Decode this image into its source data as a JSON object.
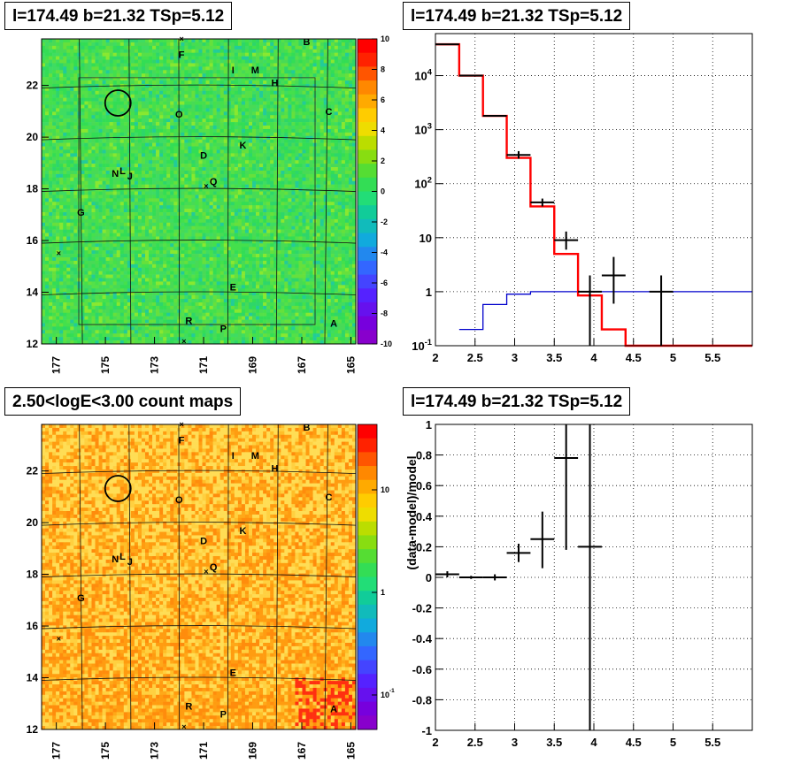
{
  "panels": {
    "tl_title": "l=174.49 b=21.32 TSp=5.12",
    "tr_title": "l=174.49 b=21.32 TSp=5.12",
    "bl_title": "2.50<logE<3.00 count maps",
    "br_title": "l=174.49 b=21.32 TSp=5.12"
  },
  "map": {
    "x_tick_labels": [
      "177",
      "175",
      "173",
      "171",
      "169",
      "167",
      "165"
    ],
    "y_tick_labels": [
      "12",
      "14",
      "16",
      "18",
      "20",
      "22"
    ],
    "source_labels": [
      {
        "t": "A",
        "l": 165.7,
        "b": 12.8
      },
      {
        "t": "B",
        "l": 166.8,
        "b": 23.7
      },
      {
        "t": "C",
        "l": 165.9,
        "b": 21.0
      },
      {
        "t": "D",
        "l": 171.0,
        "b": 19.3
      },
      {
        "t": "E",
        "l": 169.8,
        "b": 14.2
      },
      {
        "t": "F",
        "l": 171.9,
        "b": 23.2
      },
      {
        "t": "G",
        "l": 176.0,
        "b": 17.1
      },
      {
        "t": "H",
        "l": 168.1,
        "b": 22.1
      },
      {
        "t": "I",
        "l": 169.8,
        "b": 22.6
      },
      {
        "t": "J",
        "l": 174.0,
        "b": 18.5
      },
      {
        "t": "K",
        "l": 169.4,
        "b": 19.7
      },
      {
        "t": "L",
        "l": 174.3,
        "b": 18.7
      },
      {
        "t": "M",
        "l": 168.9,
        "b": 22.6
      },
      {
        "t": "N",
        "l": 174.6,
        "b": 18.6
      },
      {
        "t": "O",
        "l": 172.0,
        "b": 20.9
      },
      {
        "t": "P",
        "l": 170.2,
        "b": 12.6
      },
      {
        "t": "Q",
        "l": 170.6,
        "b": 18.3
      },
      {
        "t": "R",
        "l": 171.6,
        "b": 12.9
      }
    ],
    "target_circle": {
      "l": 174.49,
      "b": 21.32
    }
  },
  "colorbar_top": {
    "labels": [
      "10",
      "8",
      "6",
      "4",
      "2",
      "0",
      "-2",
      "-4",
      "-6",
      "-8",
      "-10"
    ]
  },
  "colorbar_bottom": {
    "labels": [
      "10",
      "1",
      "10^-1"
    ]
  },
  "colors": {
    "model_red": "#ff0000",
    "extra_blue": "#0000cc",
    "data_black": "#000000"
  },
  "chart_data": [
    {
      "type": "line",
      "panel": "spectrum",
      "log_y": true,
      "xlim": [
        2,
        6
      ],
      "ylim": [
        0.1,
        60000
      ],
      "x_ticks": [
        "2",
        "2.5",
        "3",
        "3.5",
        "4",
        "4.5",
        "5",
        "5.5"
      ],
      "y_ticks": [
        "10^-1",
        "1",
        "10",
        "10^2",
        "10^3",
        "10^4"
      ],
      "series": [
        {
          "role": "model",
          "edges": [
            2.0,
            2.3,
            2.6,
            2.9,
            3.2,
            3.5,
            3.8,
            4.1,
            4.4,
            4.7,
            5.0,
            5.3,
            5.6,
            6.0
          ],
          "values": [
            38000,
            10000,
            1800,
            300,
            38,
            5,
            0.85,
            0.2,
            0.1,
            0.1,
            0.1,
            0.1,
            0.1
          ]
        },
        {
          "role": "component",
          "edges": [
            2.3,
            2.6,
            2.9,
            3.2,
            3.5,
            3.8,
            4.1,
            4.4,
            4.7,
            5.0,
            5.3,
            5.6,
            6.0
          ],
          "values": [
            0.2,
            0.58,
            0.9,
            1,
            1,
            1,
            1,
            1,
            1,
            1,
            1,
            1
          ]
        },
        {
          "role": "data",
          "points": [
            {
              "x": 2.15,
              "xerr": 0.15,
              "y": 38000
            },
            {
              "x": 2.45,
              "xerr": 0.15,
              "y": 10000
            },
            {
              "x": 2.75,
              "xerr": 0.15,
              "y": 1800
            },
            {
              "x": 3.05,
              "xerr": 0.15,
              "y": 340,
              "ylo": 290,
              "yhi": 400
            },
            {
              "x": 3.35,
              "xerr": 0.15,
              "y": 45,
              "ylo": 38,
              "yhi": 53
            },
            {
              "x": 3.65,
              "xerr": 0.15,
              "y": 9,
              "ylo": 6,
              "yhi": 13
            },
            {
              "x": 3.95,
              "xerr": 0.15,
              "y": 1,
              "ylo": 0.1,
              "yhi": 2
            },
            {
              "x": 4.25,
              "xerr": 0.15,
              "y": 2,
              "ylo": 0.6,
              "yhi": 4.4
            },
            {
              "x": 4.85,
              "xerr": 0.15,
              "y": 1,
              "ylo": 0.1,
              "yhi": 2
            }
          ]
        }
      ]
    },
    {
      "type": "scatter",
      "panel": "residuals",
      "ylabel": "(data-model)/model",
      "xlim": [
        2,
        6
      ],
      "ylim": [
        -1,
        1
      ],
      "x_ticks": [
        "2",
        "2.5",
        "3",
        "3.5",
        "4",
        "4.5",
        "5",
        "5.5"
      ],
      "y_ticks": [
        "-1",
        "-0.8",
        "-0.6",
        "-0.4",
        "-0.2",
        "0",
        "0.2",
        "0.4",
        "0.6",
        "0.8",
        "1"
      ],
      "points": [
        {
          "x": 2.15,
          "xerr": 0.15,
          "y": 0.02,
          "ylo": 0.0,
          "yhi": 0.04
        },
        {
          "x": 2.45,
          "xerr": 0.15,
          "y": 0.0,
          "ylo": -0.01,
          "yhi": 0.01
        },
        {
          "x": 2.75,
          "xerr": 0.15,
          "y": 0.0,
          "ylo": -0.02,
          "yhi": 0.02
        },
        {
          "x": 3.05,
          "xerr": 0.15,
          "y": 0.16,
          "ylo": 0.1,
          "yhi": 0.22
        },
        {
          "x": 3.35,
          "xerr": 0.15,
          "y": 0.25,
          "ylo": 0.06,
          "yhi": 0.43
        },
        {
          "x": 3.65,
          "xerr": 0.15,
          "y": 0.78,
          "ylo": 0.18,
          "yhi": 1.0
        },
        {
          "x": 3.95,
          "xerr": 0.15,
          "y": 0.2,
          "ylo": -1.0,
          "yhi": 1.0
        }
      ]
    }
  ]
}
